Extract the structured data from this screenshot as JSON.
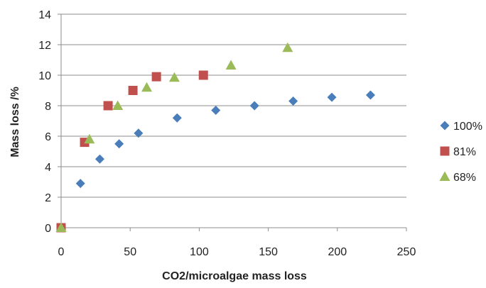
{
  "chart_data": {
    "type": "scatter",
    "title": "",
    "xlabel": "CO2/microalgae mass loss",
    "ylabel": "Mass loss /%",
    "xlim": [
      0,
      250
    ],
    "ylim": [
      0,
      14
    ],
    "xticks": [
      0,
      50,
      100,
      150,
      200,
      250
    ],
    "yticks": [
      0,
      2,
      4,
      6,
      8,
      10,
      12,
      14
    ],
    "grid": "horizontal",
    "legend_position": "right",
    "series": [
      {
        "name": "100%",
        "marker": "diamond",
        "color": "#4a7ebb",
        "points": [
          [
            0,
            0
          ],
          [
            14,
            2.9
          ],
          [
            28,
            4.5
          ],
          [
            42,
            5.5
          ],
          [
            56,
            6.2
          ],
          [
            84,
            7.2
          ],
          [
            112,
            7.7
          ],
          [
            140,
            8.0
          ],
          [
            168,
            8.3
          ],
          [
            196,
            8.55
          ],
          [
            224,
            8.7
          ]
        ]
      },
      {
        "name": "81%",
        "marker": "square",
        "color": "#c0504d",
        "points": [
          [
            0,
            0
          ],
          [
            17,
            5.6
          ],
          [
            34,
            8.0
          ],
          [
            52,
            9.0
          ],
          [
            69,
            9.9
          ],
          [
            103,
            10.0
          ]
        ]
      },
      {
        "name": "68%",
        "marker": "triangle",
        "color": "#9bbb59",
        "points": [
          [
            0,
            0
          ],
          [
            20.5,
            5.8
          ],
          [
            41,
            8.0
          ],
          [
            62,
            9.2
          ],
          [
            82,
            9.85
          ],
          [
            123,
            10.65
          ],
          [
            164,
            11.8
          ]
        ]
      }
    ]
  }
}
